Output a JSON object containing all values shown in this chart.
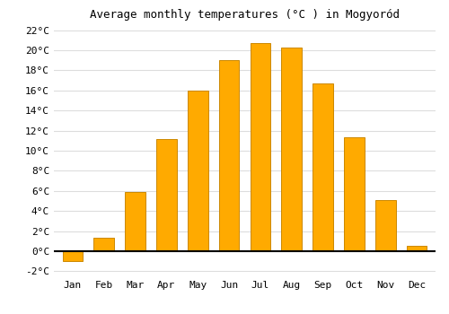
{
  "title": "Average monthly temperatures (°C ) in Mogyoród",
  "months": [
    "Jan",
    "Feb",
    "Mar",
    "Apr",
    "May",
    "Jun",
    "Jul",
    "Aug",
    "Sep",
    "Oct",
    "Nov",
    "Dec"
  ],
  "values": [
    -1.0,
    1.3,
    5.9,
    11.2,
    16.0,
    19.0,
    20.7,
    20.3,
    16.7,
    11.3,
    5.1,
    0.5
  ],
  "bar_color": "#FFAA00",
  "bar_edge_color": "#CC8800",
  "ylim": [
    -2.5,
    22.5
  ],
  "yticks": [
    -2,
    0,
    2,
    4,
    6,
    8,
    10,
    12,
    14,
    16,
    18,
    20,
    22
  ],
  "background_color": "#FFFFFF",
  "grid_color": "#DDDDDD",
  "title_fontsize": 9,
  "tick_fontsize": 8,
  "font_family": "monospace"
}
